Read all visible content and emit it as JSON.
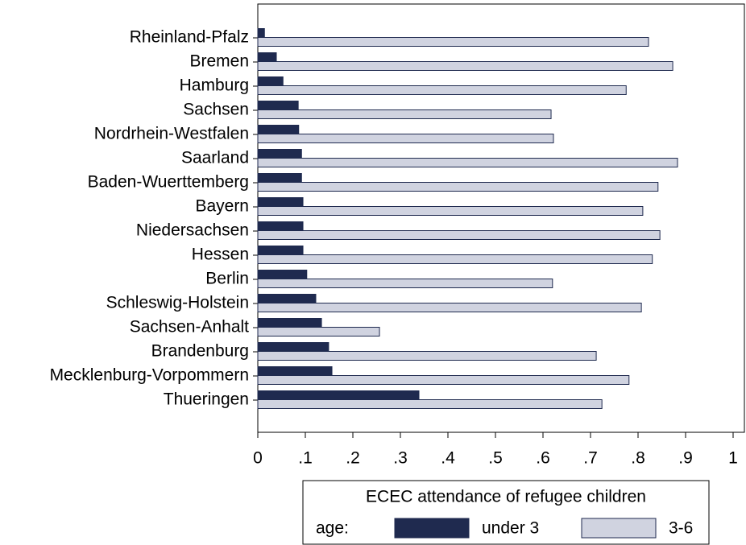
{
  "chart_data": {
    "type": "hbar",
    "categories": [
      "Rheinland-Pfalz",
      "Bremen",
      "Hamburg",
      "Sachsen",
      "Nordrhein-Westfalen",
      "Saarland",
      "Baden-Wuerttemberg",
      "Bayern",
      "Niedersachsen",
      "Hessen",
      "Berlin",
      "Schleswig-Holstein",
      "Sachsen-Anhalt",
      "Brandenburg",
      "Mecklenburg-Vorpommern",
      "Thueringen"
    ],
    "series": [
      {
        "name": "under 3",
        "color": "#1f2a4f",
        "values": [
          0.014,
          0.039,
          0.053,
          0.085,
          0.086,
          0.092,
          0.092,
          0.095,
          0.095,
          0.095,
          0.103,
          0.122,
          0.134,
          0.149,
          0.156,
          0.339
        ]
      },
      {
        "name": "3-6",
        "color": "#d0d3e0",
        "values": [
          0.822,
          0.873,
          0.775,
          0.617,
          0.622,
          0.883,
          0.842,
          0.81,
          0.846,
          0.83,
          0.62,
          0.807,
          0.256,
          0.712,
          0.781,
          0.724
        ]
      }
    ],
    "xlim": [
      0,
      1
    ],
    "xticks": [
      0,
      {
        "value": 0.1,
        "label": ".1"
      },
      {
        "value": 0.2,
        "label": ".2"
      },
      {
        "value": 0.3,
        "label": ".3"
      },
      {
        "value": 0.4,
        "label": ".4"
      },
      {
        "value": 0.5,
        "label": ".5"
      },
      {
        "value": 0.6,
        "label": ".6"
      },
      {
        "value": 0.7,
        "label": ".7"
      },
      {
        "value": 0.8,
        "label": ".8"
      },
      {
        "value": 0.9,
        "label": ".9"
      },
      1
    ],
    "legend": {
      "title": "ECEC attendance of refugee children",
      "label": "age:"
    }
  }
}
